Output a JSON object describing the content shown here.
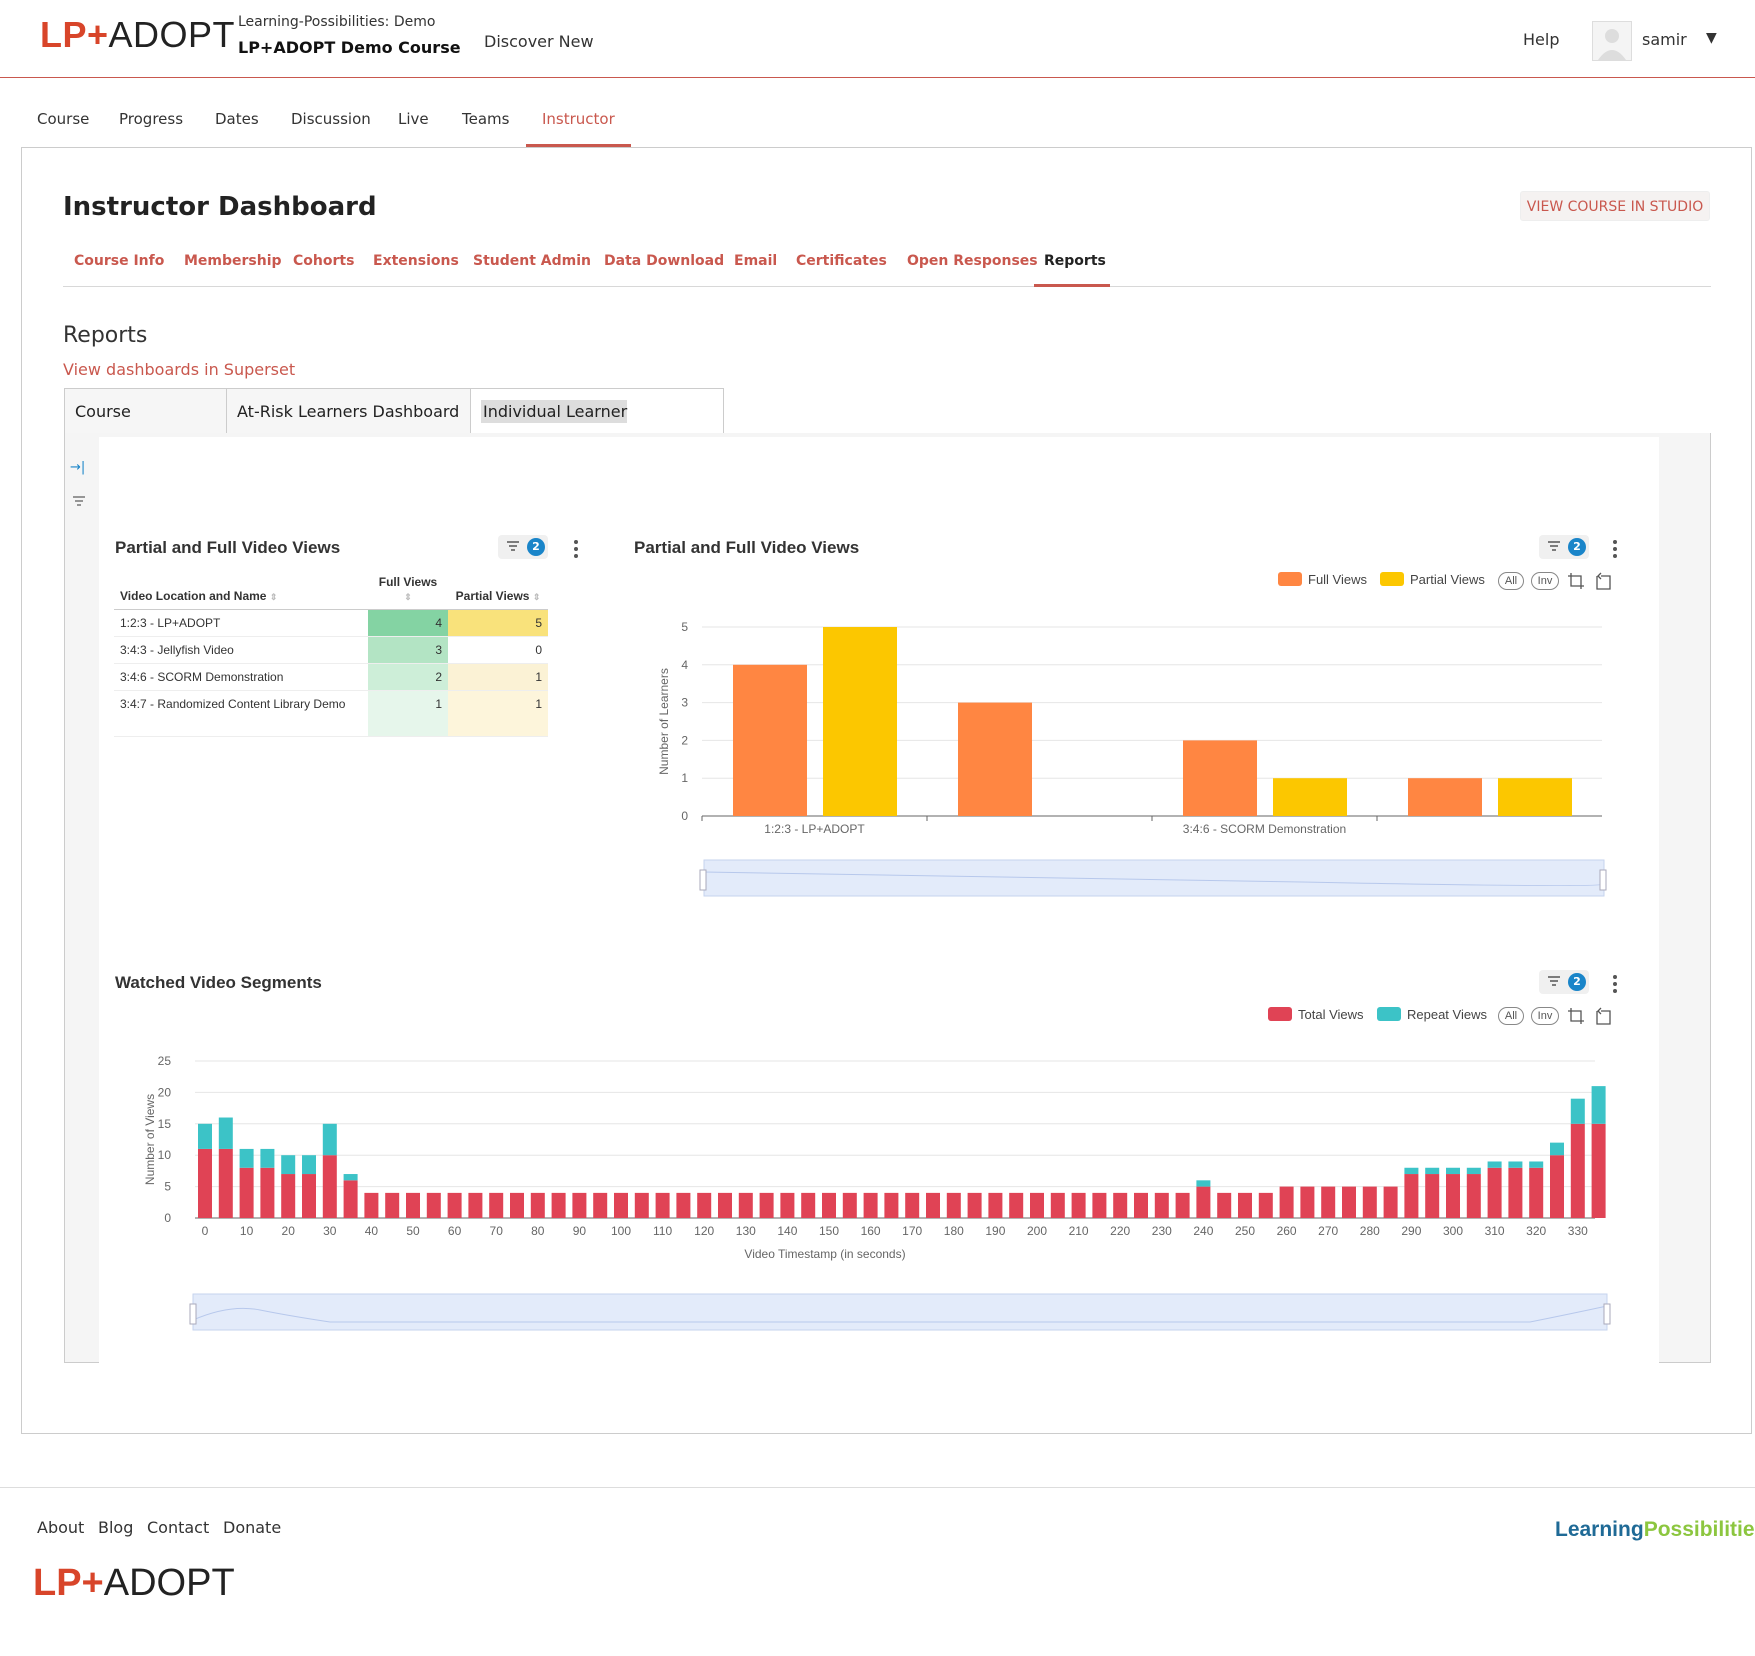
{
  "header": {
    "logo_lp": "LP+",
    "logo_adopt": "ADOPT",
    "org": "Learning-Possibilities: Demo",
    "course": "LP+ADOPT Demo Course",
    "discover": "Discover New",
    "help": "Help",
    "username": "samir"
  },
  "course_nav": [
    "Course",
    "Progress",
    "Dates",
    "Discussion",
    "Live",
    "Teams",
    "Instructor"
  ],
  "instructor": {
    "title": "Instructor Dashboard",
    "studio_button": "VIEW COURSE IN STUDIO",
    "tabs": [
      "Course Info",
      "Membership",
      "Cohorts",
      "Extensions",
      "Student Admin",
      "Data Download",
      "Email",
      "Certificates",
      "Open Responses",
      "Reports"
    ]
  },
  "reports": {
    "heading": "Reports",
    "superset_link": "View dashboards in Superset",
    "dashboard_tabs": [
      "Course Dashboard",
      "At-Risk Learners Dashboard",
      "Individual Learner Dashboard"
    ]
  },
  "table_panel": {
    "title": "Partial and Full Video Views",
    "filter_count": "2",
    "columns": [
      "Video Location and Name",
      "Full Views",
      "Partial Views"
    ],
    "rows": [
      {
        "name": "1:2:3 - LP+ADOPT",
        "full": 4,
        "partial": 5
      },
      {
        "name": "3:4:3 - Jellyfish Video",
        "full": 3,
        "partial": 0
      },
      {
        "name": "3:4:6 - SCORM Demonstration",
        "full": 2,
        "partial": 1
      },
      {
        "name": "3:4:7 - Randomized Content Library Demo",
        "full": 1,
        "partial": 1
      }
    ]
  },
  "bar_panel": {
    "title": "Partial and Full Video Views",
    "filter_count": "2",
    "legend": [
      "Full Views",
      "Partial Views"
    ],
    "pill_all": "All",
    "pill_inv": "Inv"
  },
  "segments_panel": {
    "title": "Watched Video Segments",
    "filter_count": "2",
    "legend": [
      "Total Views",
      "Repeat Views"
    ],
    "pill_all": "All",
    "pill_inv": "Inv"
  },
  "colors": {
    "accent": "#c9584e",
    "full_views": "#ff8642",
    "partial_views": "#fcc700",
    "total_views": "#e04355",
    "repeat_views": "#3cc3c7",
    "badge": "#1a85c9"
  },
  "chart_data": [
    {
      "type": "bar",
      "title": "Partial and Full Video Views",
      "ylabel": "Number of Learners",
      "xlabel": "",
      "categories": [
        "1:2:3 - LP+ADOPT",
        "3:4:3 - Jellyfish Video",
        "3:4:6 - SCORM Demonstration",
        "3:4:7 - Randomized Content Library Demo"
      ],
      "x_tick_labels_shown": [
        "1:2:3 - LP+ADOPT",
        "3:4:6 - SCORM Demonstration"
      ],
      "series": [
        {
          "name": "Full Views",
          "values": [
            4,
            3,
            2,
            1
          ]
        },
        {
          "name": "Partial Views",
          "values": [
            5,
            0,
            1,
            1
          ]
        }
      ],
      "ylim": [
        0,
        5
      ],
      "yticks": [
        0,
        1,
        2,
        3,
        4,
        5
      ],
      "legend": "top-right",
      "grid": true
    },
    {
      "type": "bar",
      "stacked": true,
      "title": "Watched Video Segments",
      "xlabel": "Video Timestamp (in seconds)",
      "ylabel": "Number of Views",
      "x": [
        0,
        5,
        10,
        15,
        20,
        25,
        30,
        35,
        40,
        45,
        50,
        55,
        60,
        65,
        70,
        75,
        80,
        85,
        90,
        95,
        100,
        105,
        110,
        115,
        120,
        125,
        130,
        135,
        140,
        145,
        150,
        155,
        160,
        165,
        170,
        175,
        180,
        185,
        190,
        195,
        200,
        205,
        210,
        215,
        220,
        225,
        230,
        235,
        240,
        245,
        250,
        255,
        260,
        265,
        270,
        275,
        280,
        285,
        290,
        295,
        300,
        305,
        310,
        315,
        320,
        325,
        330,
        335
      ],
      "xticks": [
        0,
        10,
        20,
        30,
        40,
        50,
        60,
        70,
        80,
        90,
        100,
        110,
        120,
        130,
        140,
        150,
        160,
        170,
        180,
        190,
        200,
        210,
        220,
        230,
        240,
        250,
        260,
        270,
        280,
        290,
        300,
        310,
        320,
        330
      ],
      "series": [
        {
          "name": "Total Views",
          "values": [
            11,
            11,
            8,
            8,
            7,
            7,
            10,
            6,
            4,
            4,
            4,
            4,
            4,
            4,
            4,
            4,
            4,
            4,
            4,
            4,
            4,
            4,
            4,
            4,
            4,
            4,
            4,
            4,
            4,
            4,
            4,
            4,
            4,
            4,
            4,
            4,
            4,
            4,
            4,
            4,
            4,
            4,
            4,
            4,
            4,
            4,
            4,
            4,
            5,
            4,
            4,
            4,
            5,
            5,
            5,
            5,
            5,
            5,
            7,
            7,
            7,
            7,
            8,
            8,
            8,
            10,
            15,
            15
          ]
        },
        {
          "name": "Repeat Views",
          "values": [
            4,
            5,
            3,
            3,
            3,
            3,
            5,
            1,
            0,
            0,
            0,
            0,
            0,
            0,
            0,
            0,
            0,
            0,
            0,
            0,
            0,
            0,
            0,
            0,
            0,
            0,
            0,
            0,
            0,
            0,
            0,
            0,
            0,
            0,
            0,
            0,
            0,
            0,
            0,
            0,
            0,
            0,
            0,
            0,
            0,
            0,
            0,
            0,
            1,
            0,
            0,
            0,
            0,
            0,
            0,
            0,
            0,
            0,
            1,
            1,
            1,
            1,
            1,
            1,
            1,
            2,
            4,
            6
          ]
        }
      ],
      "ylim": [
        0,
        25
      ],
      "yticks": [
        0,
        5,
        10,
        15,
        20,
        25
      ],
      "legend": "top-right",
      "grid": true
    }
  ],
  "footer": {
    "links": [
      "About",
      "Blog",
      "Contact",
      "Donate"
    ],
    "logo_lp": "LP+",
    "logo_adopt": "ADOPT",
    "partner_a": "Learning",
    "partner_b": "Possibilities"
  }
}
